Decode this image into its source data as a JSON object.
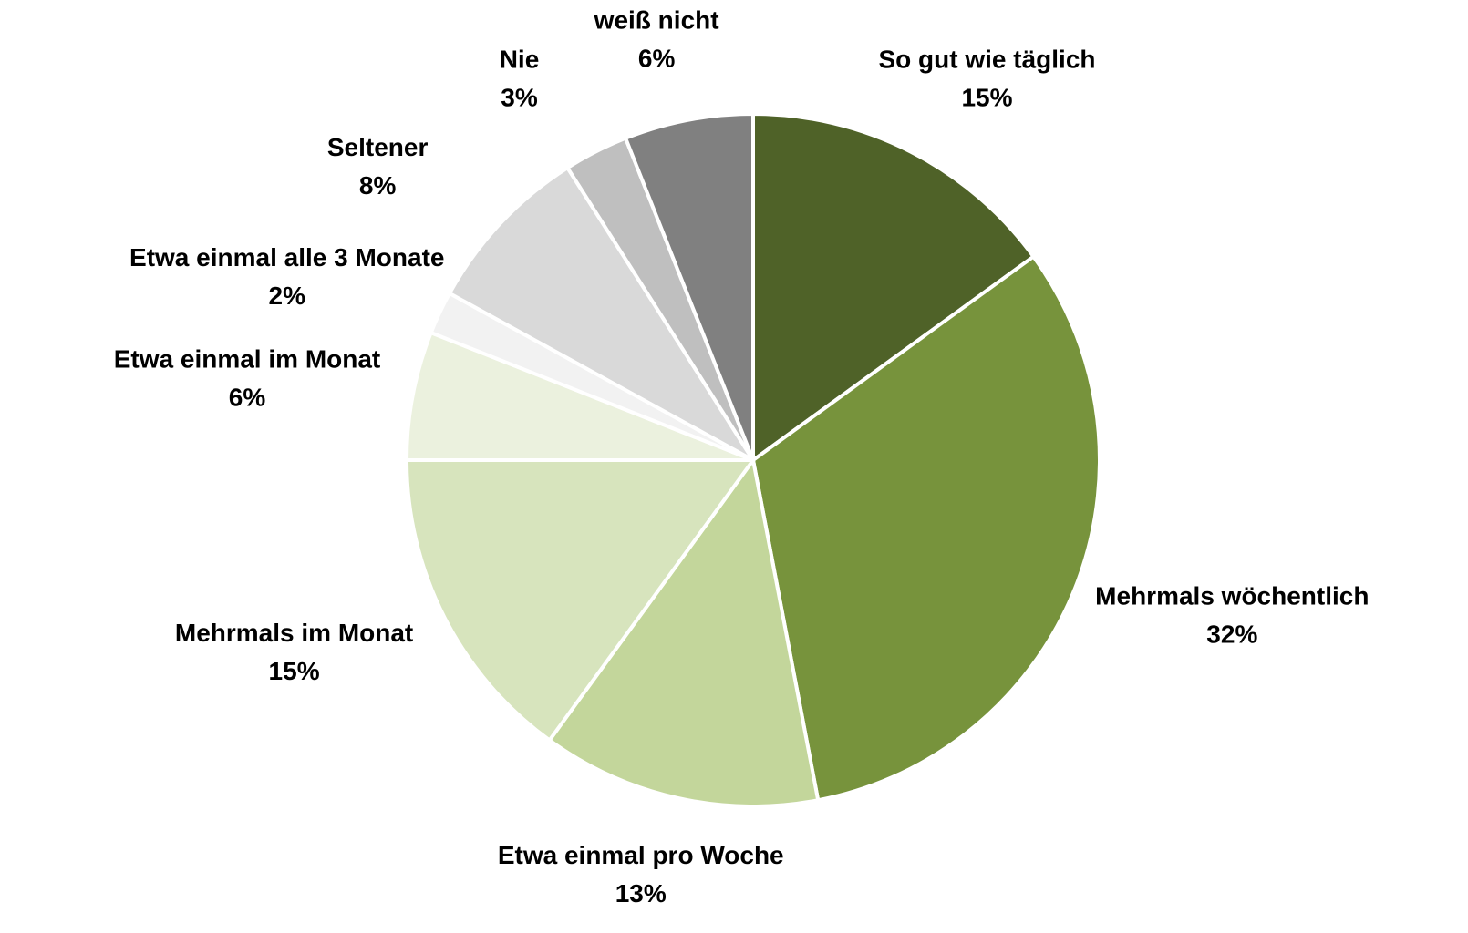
{
  "chart_data": {
    "type": "pie",
    "categories": [
      "So gut wie täglich",
      "Mehrmals wöchentlich",
      "Etwa einmal pro Woche",
      "Mehrmals im Monat",
      "Etwa einmal im Monat",
      "Etwa einmal alle 3 Monate",
      "Seltener",
      "Nie",
      "weiß nicht"
    ],
    "values": [
      15,
      32,
      13,
      15,
      6,
      2,
      8,
      3,
      6
    ],
    "value_labels": [
      "15%",
      "32%",
      "13%",
      "15%",
      "6%",
      "2%",
      "8%",
      "3%",
      "6%"
    ],
    "colors": [
      "#4f6228",
      "#77933c",
      "#c3d69b",
      "#d7e4bd",
      "#ebf1de",
      "#f2f2f2",
      "#d9d9d9",
      "#bfbfbf",
      "#808080"
    ]
  }
}
